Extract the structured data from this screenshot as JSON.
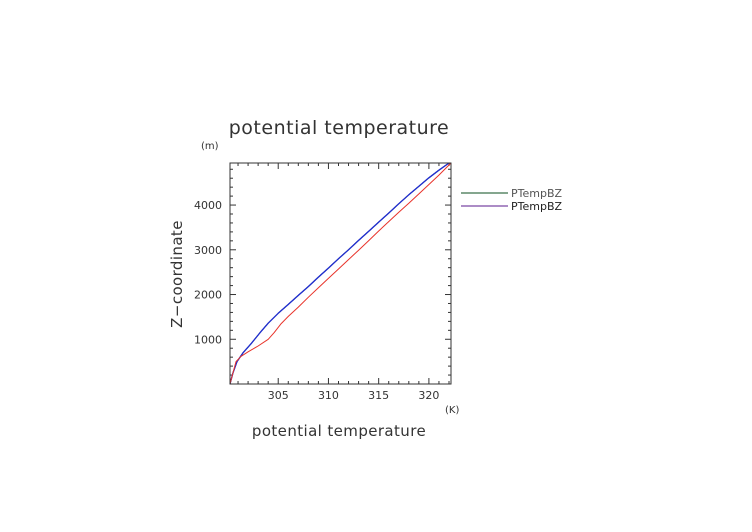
{
  "chart_data": {
    "type": "line",
    "title": "potential temperature",
    "xlabel": "potential temperature",
    "ylabel": "Z−coordinate",
    "x_unit": "(K)",
    "y_unit": "(m)",
    "xlim": [
      300.2,
      322.2
    ],
    "ylim": [
      0,
      4940
    ],
    "xticks": [
      305,
      310,
      315,
      320
    ],
    "yticks": [
      1000,
      2000,
      3000,
      4000
    ],
    "grid": false,
    "legend_position": "right",
    "series": [
      {
        "name": "PTempBZ",
        "color": "#0a4d1e",
        "points": [
          [
            300.2,
            0
          ],
          [
            300.5,
            250
          ],
          [
            300.9,
            500
          ],
          [
            301.5,
            700
          ],
          [
            302.3,
            900
          ],
          [
            303.2,
            1150
          ],
          [
            304.0,
            1360
          ],
          [
            305.0,
            1580
          ],
          [
            306.0,
            1780
          ],
          [
            307.0,
            1980
          ],
          [
            308.0,
            2180
          ],
          [
            309.0,
            2390
          ],
          [
            310.0,
            2590
          ],
          [
            311.0,
            2800
          ],
          [
            312.0,
            3000
          ],
          [
            313.0,
            3210
          ],
          [
            314.0,
            3410
          ],
          [
            315.0,
            3620
          ],
          [
            316.0,
            3820
          ],
          [
            317.0,
            4030
          ],
          [
            318.0,
            4230
          ],
          [
            319.0,
            4420
          ],
          [
            320.0,
            4610
          ],
          [
            321.0,
            4780
          ],
          [
            322.0,
            4940
          ]
        ]
      },
      {
        "name": "PTempBZ",
        "color": "#5a1a8c",
        "points": [
          [
            300.2,
            0
          ],
          [
            300.5,
            250
          ],
          [
            300.9,
            500
          ],
          [
            301.5,
            700
          ],
          [
            302.3,
            900
          ],
          [
            303.2,
            1150
          ],
          [
            304.0,
            1360
          ],
          [
            305.0,
            1580
          ],
          [
            306.0,
            1780
          ],
          [
            307.0,
            1980
          ],
          [
            308.0,
            2180
          ],
          [
            309.0,
            2390
          ],
          [
            310.0,
            2590
          ],
          [
            311.0,
            2800
          ],
          [
            312.0,
            3000
          ],
          [
            313.0,
            3210
          ],
          [
            314.0,
            3410
          ],
          [
            315.0,
            3620
          ],
          [
            316.0,
            3820
          ],
          [
            317.0,
            4030
          ],
          [
            318.0,
            4230
          ],
          [
            319.0,
            4420
          ],
          [
            320.0,
            4610
          ],
          [
            321.0,
            4780
          ],
          [
            322.0,
            4940
          ]
        ]
      },
      {
        "color": "#1f2fd0",
        "points": [
          [
            300.2,
            0
          ],
          [
            300.5,
            250
          ],
          [
            300.9,
            500
          ],
          [
            301.5,
            700
          ],
          [
            302.3,
            900
          ],
          [
            303.2,
            1150
          ],
          [
            304.0,
            1360
          ],
          [
            305.0,
            1580
          ],
          [
            306.0,
            1780
          ],
          [
            307.0,
            1980
          ],
          [
            308.0,
            2180
          ],
          [
            309.0,
            2390
          ],
          [
            310.0,
            2590
          ],
          [
            311.0,
            2800
          ],
          [
            312.0,
            3000
          ],
          [
            313.0,
            3210
          ],
          [
            314.0,
            3410
          ],
          [
            315.0,
            3620
          ],
          [
            316.0,
            3820
          ],
          [
            317.0,
            4030
          ],
          [
            318.0,
            4230
          ],
          [
            319.0,
            4420
          ],
          [
            320.0,
            4610
          ],
          [
            321.0,
            4780
          ],
          [
            322.0,
            4940
          ]
        ]
      },
      {
        "color": "#e8332a",
        "points": [
          [
            300.2,
            0
          ],
          [
            300.5,
            250
          ],
          [
            300.8,
            500
          ],
          [
            301.3,
            620
          ],
          [
            302.0,
            720
          ],
          [
            303.0,
            850
          ],
          [
            304.0,
            1000
          ],
          [
            304.6,
            1150
          ],
          [
            305.3,
            1350
          ],
          [
            306.0,
            1510
          ],
          [
            307.0,
            1720
          ],
          [
            308.0,
            1940
          ],
          [
            309.0,
            2150
          ],
          [
            310.0,
            2360
          ],
          [
            311.0,
            2570
          ],
          [
            312.0,
            2780
          ],
          [
            313.0,
            2990
          ],
          [
            314.0,
            3200
          ],
          [
            315.0,
            3420
          ],
          [
            316.0,
            3630
          ],
          [
            317.0,
            3840
          ],
          [
            318.0,
            4040
          ],
          [
            319.0,
            4250
          ],
          [
            320.0,
            4460
          ],
          [
            321.0,
            4670
          ],
          [
            322.2,
            4940
          ]
        ]
      }
    ]
  }
}
